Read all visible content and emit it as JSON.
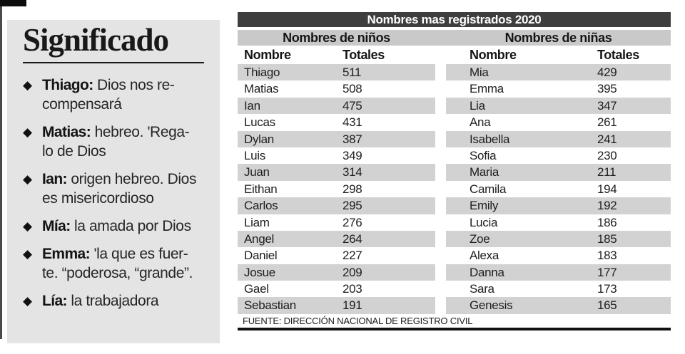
{
  "sidebar": {
    "title": "Significado",
    "bullet_icon": "diamond-bullet",
    "items": [
      {
        "name": "Thiago:",
        "desc": " Dios nos re-\ncompensará"
      },
      {
        "name": "Matias:",
        "desc": " hebreo. 'Rega-\nlo de Dios"
      },
      {
        "name": "Ian:",
        "desc": " origen hebreo. Dios\nes misericordioso"
      },
      {
        "name": "Mía:",
        "desc": " la amada por Dios"
      },
      {
        "name": "Emma:",
        "desc": " 'la que es fuer-\nte. “poderosa, “grande”."
      },
      {
        "name": "Lía:",
        "desc": " la trabajadora"
      }
    ]
  },
  "table": {
    "title": "Nombres mas registrados 2020",
    "source": "FUENTE: DIRECCIÓN NACIONAL DE REGISTRO CIVIL",
    "groups": [
      {
        "label": "Nombres de niños",
        "col_name": "Nombre",
        "col_total": "Totales",
        "rows": [
          [
            "Thiago",
            "511"
          ],
          [
            "Matias",
            "508"
          ],
          [
            "Ian",
            "475"
          ],
          [
            "Lucas",
            "431"
          ],
          [
            "Dylan",
            "387"
          ],
          [
            "Luis",
            "349"
          ],
          [
            "Juan",
            "314"
          ],
          [
            "Eithan",
            "298"
          ],
          [
            "Carlos",
            "295"
          ],
          [
            "Liam",
            "276"
          ],
          [
            "Angel",
            "264"
          ],
          [
            "Daniel",
            "227"
          ],
          [
            "Josue",
            "209"
          ],
          [
            "Gael",
            "203"
          ],
          [
            "Sebastian",
            "191"
          ]
        ]
      },
      {
        "label": "Nombres de niñas",
        "col_name": "Nombre",
        "col_total": "Totales",
        "rows": [
          [
            "Mia",
            "429"
          ],
          [
            "Emma",
            "395"
          ],
          [
            "Lia",
            "347"
          ],
          [
            "Ana",
            "261"
          ],
          [
            "Isabella",
            "241"
          ],
          [
            "Sofia",
            "230"
          ],
          [
            "Maria",
            "211"
          ],
          [
            "Camila",
            "194"
          ],
          [
            "Emily",
            "192"
          ],
          [
            "Lucia",
            "186"
          ],
          [
            "Zoe",
            "185"
          ],
          [
            "Alexa",
            "183"
          ],
          [
            "Danna",
            "177"
          ],
          [
            "Sara",
            "173"
          ],
          [
            "Genesis",
            "165"
          ]
        ]
      }
    ]
  },
  "colors": {
    "bar_dark": "#3e3e3e",
    "band_gray": "#c9c9c9",
    "stripe_gray": "#d2d2d2",
    "panel_bg": "#e4e4e4"
  }
}
